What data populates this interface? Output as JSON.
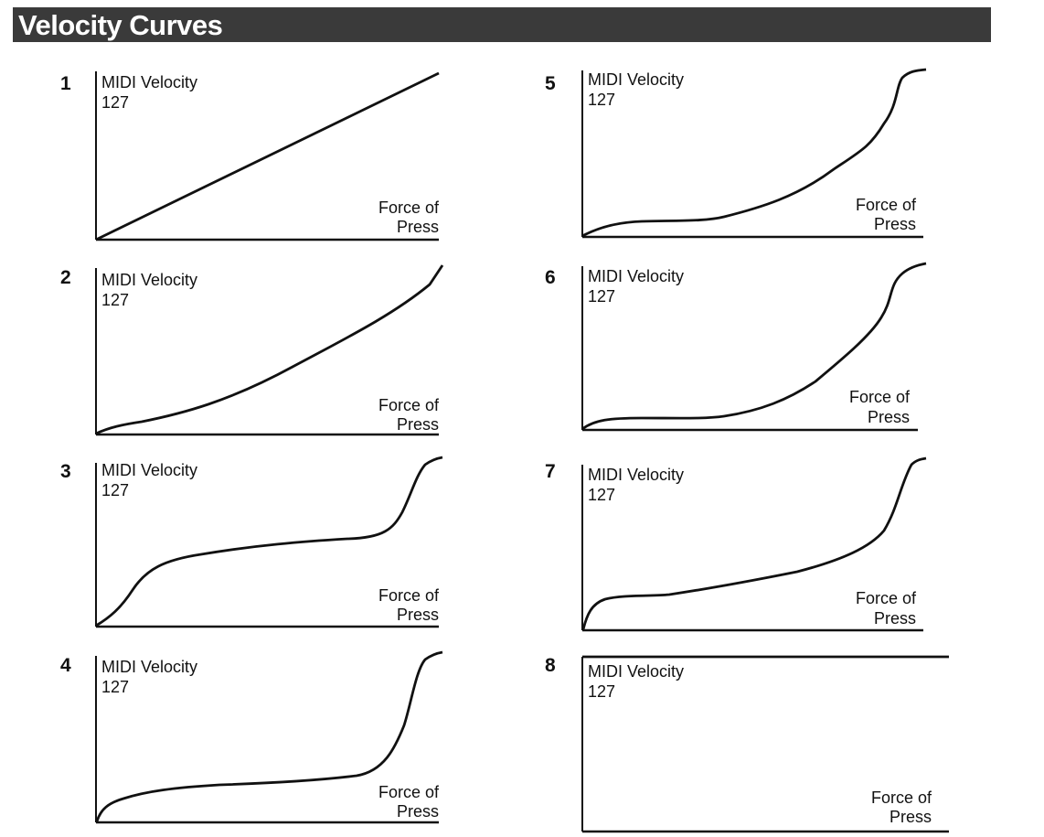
{
  "header": {
    "title": "Velocity Curves"
  },
  "curves": [
    {
      "number": "1",
      "y_label": "MIDI Velocity",
      "y_max": "127",
      "x_label_1": "Force of",
      "x_label_2": "Press"
    },
    {
      "number": "2",
      "y_label": "MIDI Velocity",
      "y_max": "127",
      "x_label_1": "Force of",
      "x_label_2": "Press"
    },
    {
      "number": "3",
      "y_label": "MIDI Velocity",
      "y_max": "127",
      "x_label_1": "Force of",
      "x_label_2": "Press"
    },
    {
      "number": "4",
      "y_label": "MIDI Velocity",
      "y_max": "127",
      "x_label_1": "Force of",
      "x_label_2": "Press"
    },
    {
      "number": "5",
      "y_label": "MIDI Velocity",
      "y_max": "127",
      "x_label_1": "Force of",
      "x_label_2": "Press"
    },
    {
      "number": "6",
      "y_label": "MIDI Velocity",
      "y_max": "127",
      "x_label_1": "Force of",
      "x_label_2": "Press"
    },
    {
      "number": "7",
      "y_label": "MIDI Velocity",
      "y_max": "127",
      "x_label_1": "Force of",
      "x_label_2": "Press"
    },
    {
      "number": "8",
      "y_label": "MIDI Velocity",
      "y_max": "127",
      "x_label_1": "Force of",
      "x_label_2": "Press"
    }
  ]
}
